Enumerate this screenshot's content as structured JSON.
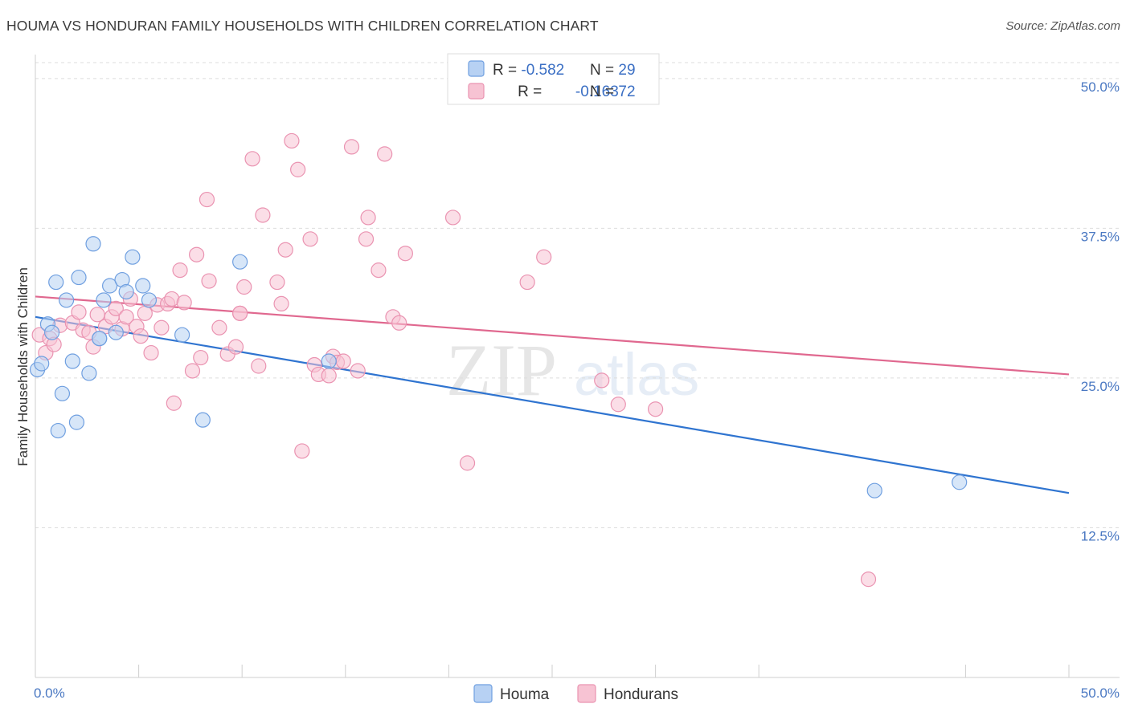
{
  "title": "HOUMA VS HONDURAN FAMILY HOUSEHOLDS WITH CHILDREN CORRELATION CHART",
  "source": "Source: ZipAtlas.com",
  "watermark": {
    "zip": "ZIP",
    "atlas": "atlas"
  },
  "colors": {
    "houma_fill": "#b7d1f3",
    "houma_stroke": "#6f9fe0",
    "houma_line": "#2f74d0",
    "hond_fill": "#f7c3d3",
    "hond_stroke": "#ea93b1",
    "hond_line": "#e0688f",
    "grid": "#dddddd",
    "tick_label": "#4a78c2"
  },
  "legend_top": [
    {
      "r_label": "R = ",
      "r_value": "-0.582",
      "n_label": "N = ",
      "n_value": "29"
    },
    {
      "r_label": "R = ",
      "r_value": " -0.163",
      "n_label": "N = ",
      "n_value": "72"
    }
  ],
  "legend_bottom": [
    "Houma",
    "Hondurans"
  ],
  "chart_data": {
    "type": "scatter",
    "title": "HOUMA VS HONDURAN FAMILY HOUSEHOLDS WITH CHILDREN CORRELATION CHART",
    "xlabel": "",
    "ylabel": "Family Households with Children",
    "xlim": [
      0,
      50
    ],
    "ylim": [
      0,
      52
    ],
    "x_tick_labels": [
      "0.0%",
      "50.0%"
    ],
    "y_ticks": [
      12.5,
      25.0,
      37.5,
      50.0
    ],
    "y_tick_labels": [
      "12.5%",
      "25.0%",
      "37.5%",
      "50.0%"
    ],
    "grid": true,
    "legend_position": "top-center",
    "series": [
      {
        "name": "Houma",
        "points": [
          [
            0.1,
            25.7
          ],
          [
            0.3,
            26.2
          ],
          [
            0.6,
            29.5
          ],
          [
            0.8,
            28.8
          ],
          [
            1.0,
            33.0
          ],
          [
            1.1,
            20.6
          ],
          [
            1.3,
            23.7
          ],
          [
            1.5,
            31.5
          ],
          [
            1.8,
            26.4
          ],
          [
            2.0,
            21.3
          ],
          [
            2.1,
            33.4
          ],
          [
            2.6,
            25.4
          ],
          [
            2.8,
            36.2
          ],
          [
            3.1,
            28.3
          ],
          [
            3.3,
            31.5
          ],
          [
            3.6,
            32.7
          ],
          [
            3.9,
            28.8
          ],
          [
            4.2,
            33.2
          ],
          [
            4.4,
            32.2
          ],
          [
            4.7,
            35.1
          ],
          [
            5.2,
            32.7
          ],
          [
            5.5,
            31.5
          ],
          [
            7.1,
            28.6
          ],
          [
            8.1,
            21.5
          ],
          [
            9.9,
            34.7
          ],
          [
            14.2,
            26.4
          ],
          [
            40.6,
            15.6
          ],
          [
            44.7,
            16.3
          ],
          [
            3.1,
            28.3
          ]
        ],
        "trend": {
          "x": [
            0,
            50
          ],
          "y": [
            30.1,
            15.4
          ]
        }
      },
      {
        "name": "Hondurans",
        "points": [
          [
            0.2,
            28.6
          ],
          [
            0.5,
            27.1
          ],
          [
            0.7,
            28.3
          ],
          [
            0.9,
            27.8
          ],
          [
            1.2,
            29.4
          ],
          [
            1.8,
            29.6
          ],
          [
            2.1,
            30.5
          ],
          [
            2.3,
            29.0
          ],
          [
            2.6,
            28.8
          ],
          [
            2.8,
            27.6
          ],
          [
            3.0,
            30.3
          ],
          [
            3.4,
            29.3
          ],
          [
            3.7,
            30.1
          ],
          [
            3.9,
            30.8
          ],
          [
            4.2,
            29.1
          ],
          [
            4.4,
            30.1
          ],
          [
            4.6,
            31.6
          ],
          [
            4.9,
            29.3
          ],
          [
            5.1,
            28.5
          ],
          [
            5.3,
            30.4
          ],
          [
            5.6,
            27.1
          ],
          [
            5.9,
            31.1
          ],
          [
            6.1,
            29.2
          ],
          [
            6.4,
            31.2
          ],
          [
            6.6,
            31.6
          ],
          [
            6.7,
            22.9
          ],
          [
            7.0,
            34.0
          ],
          [
            7.2,
            31.3
          ],
          [
            7.6,
            25.6
          ],
          [
            7.8,
            35.3
          ],
          [
            8.0,
            26.7
          ],
          [
            8.3,
            39.9
          ],
          [
            8.4,
            33.1
          ],
          [
            8.9,
            29.2
          ],
          [
            9.3,
            27.0
          ],
          [
            9.7,
            27.6
          ],
          [
            9.9,
            30.4
          ],
          [
            10.1,
            32.6
          ],
          [
            10.5,
            43.3
          ],
          [
            10.8,
            26.0
          ],
          [
            11.0,
            38.6
          ],
          [
            11.7,
            33.0
          ],
          [
            11.9,
            31.2
          ],
          [
            12.1,
            35.7
          ],
          [
            12.4,
            44.8
          ],
          [
            12.7,
            42.4
          ],
          [
            12.9,
            18.9
          ],
          [
            13.3,
            36.6
          ],
          [
            13.5,
            26.1
          ],
          [
            13.7,
            25.3
          ],
          [
            14.2,
            25.2
          ],
          [
            14.4,
            26.8
          ],
          [
            14.6,
            26.3
          ],
          [
            14.9,
            26.4
          ],
          [
            15.3,
            44.3
          ],
          [
            15.6,
            25.6
          ],
          [
            16.0,
            36.6
          ],
          [
            16.1,
            38.4
          ],
          [
            16.6,
            34.0
          ],
          [
            16.9,
            43.7
          ],
          [
            17.3,
            30.1
          ],
          [
            17.6,
            29.6
          ],
          [
            17.9,
            35.4
          ],
          [
            20.2,
            38.4
          ],
          [
            20.9,
            17.9
          ],
          [
            23.8,
            33.0
          ],
          [
            24.6,
            35.1
          ],
          [
            27.4,
            24.8
          ],
          [
            28.2,
            22.8
          ],
          [
            30.0,
            22.4
          ],
          [
            40.3,
            8.2
          ],
          [
            9.9,
            30.4
          ]
        ],
        "trend": {
          "x": [
            0,
            50
          ],
          "y": [
            31.8,
            25.3
          ]
        }
      }
    ]
  }
}
